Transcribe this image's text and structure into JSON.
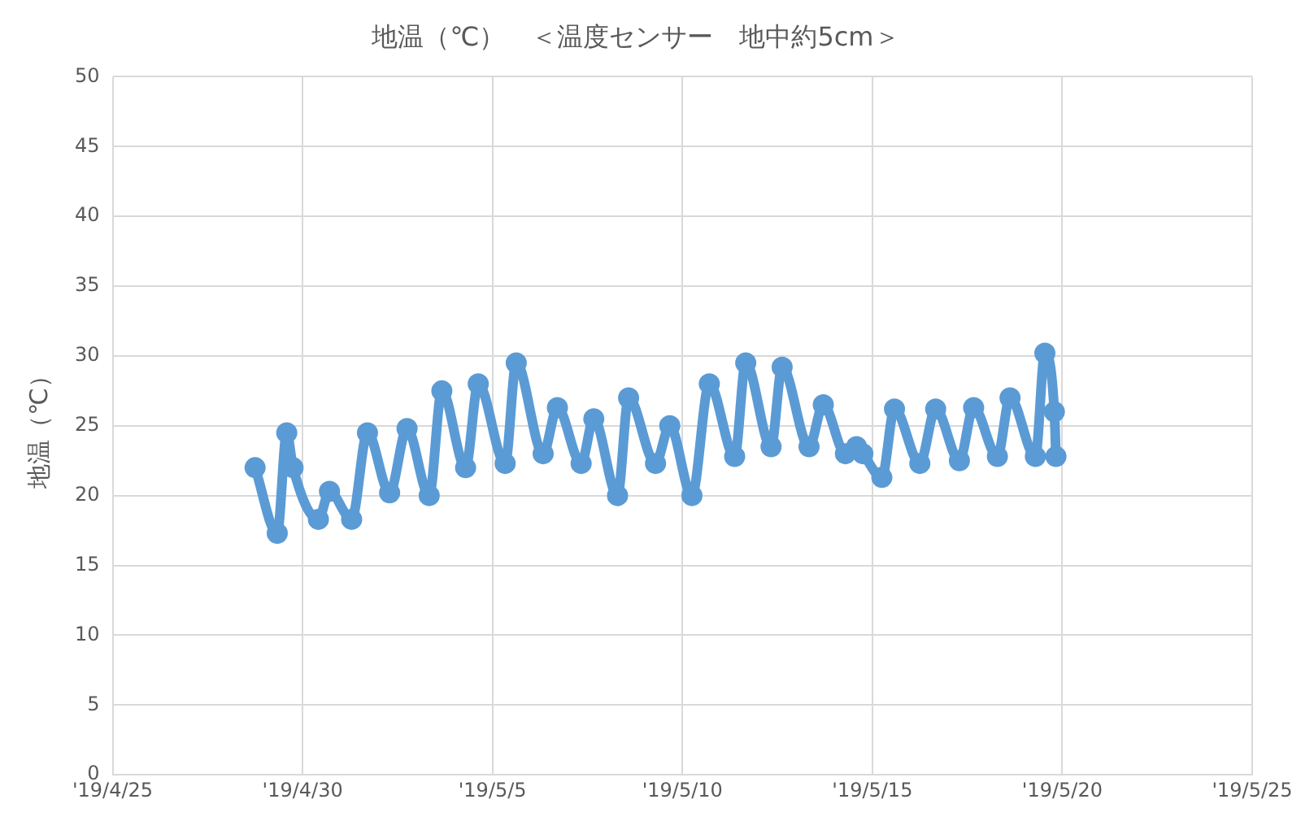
{
  "chart_data": {
    "type": "line",
    "title": "地温（℃）　＜温度センサー　地中約5cm＞",
    "ylabel": "地温（℃）",
    "x": [
      "2019-04-28T18:00",
      "2019-04-29T08:00",
      "2019-04-29T14:00",
      "2019-04-29T18:00",
      "2019-04-30T10:00",
      "2019-04-30T17:00",
      "2019-05-01T07:00",
      "2019-05-01T17:00",
      "2019-05-02T07:00",
      "2019-05-02T18:00",
      "2019-05-03T08:00",
      "2019-05-03T16:00",
      "2019-05-04T07:00",
      "2019-05-04T15:00",
      "2019-05-05T08:00",
      "2019-05-05T15:00",
      "2019-05-06T08:00",
      "2019-05-06T17:00",
      "2019-05-07T08:00",
      "2019-05-07T16:00",
      "2019-05-08T07:00",
      "2019-05-08T14:00",
      "2019-05-09T07:00",
      "2019-05-09T16:00",
      "2019-05-10T06:00",
      "2019-05-10T17:00",
      "2019-05-11T09:00",
      "2019-05-11T16:00",
      "2019-05-12T08:00",
      "2019-05-12T15:00",
      "2019-05-13T08:00",
      "2019-05-13T17:00",
      "2019-05-14T07:00",
      "2019-05-14T14:00",
      "2019-05-14T18:00",
      "2019-05-15T06:00",
      "2019-05-15T14:00",
      "2019-05-16T06:00",
      "2019-05-16T16:00",
      "2019-05-17T07:00",
      "2019-05-17T16:00",
      "2019-05-18T07:00",
      "2019-05-18T15:00",
      "2019-05-19T07:00",
      "2019-05-19T13:00",
      "2019-05-19T19:00",
      "2019-05-19T20:00"
    ],
    "series": [
      {
        "color": "#5b9bd5",
        "values": [
          22,
          17.3,
          24.5,
          22,
          18.3,
          20.3,
          18.3,
          24.5,
          20.2,
          24.8,
          20,
          27.5,
          22,
          28,
          22.3,
          29.5,
          23,
          26.3,
          22.3,
          25.5,
          20,
          27,
          22.3,
          25,
          20,
          28,
          22.8,
          29.5,
          23.5,
          29.2,
          23.5,
          26.5,
          23,
          23.5,
          23,
          21.3,
          26.2,
          22.3,
          26.2,
          22.5,
          26.3,
          22.8,
          27,
          22.8,
          30.2,
          26,
          22.8
        ]
      }
    ],
    "xlim": [
      "2019-04-25",
      "2019-05-25"
    ],
    "xticks": [
      {
        "value": "2019-04-25",
        "label": "'19/4/25"
      },
      {
        "value": "2019-04-30",
        "label": "'19/4/30"
      },
      {
        "value": "2019-05-05",
        "label": "'19/5/5"
      },
      {
        "value": "2019-05-10",
        "label": "'19/5/10"
      },
      {
        "value": "2019-05-15",
        "label": "'19/5/15"
      },
      {
        "value": "2019-05-20",
        "label": "'19/5/20"
      },
      {
        "value": "2019-05-25",
        "label": "'19/5/25"
      }
    ],
    "ylim": [
      0,
      50
    ],
    "yticks": [
      0,
      5,
      10,
      15,
      20,
      25,
      30,
      35,
      40,
      45,
      50
    ],
    "grid": true,
    "legend": false,
    "marker": "circle",
    "line_style": "solid"
  }
}
